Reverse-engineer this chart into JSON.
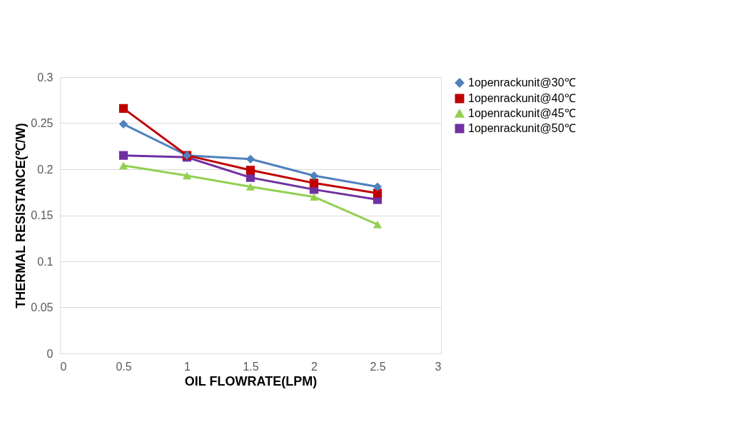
{
  "chart_data": {
    "type": "line",
    "xlabel": "OIL FLOWRATE(LPM)",
    "ylabel": "THERMAL RESISTANCE(℃/W)",
    "x": [
      0.5,
      1,
      1.5,
      2,
      2.5
    ],
    "series": [
      {
        "name": "1openrackunit@30℃",
        "color": "#4f81bd",
        "marker": "diamond",
        "values": [
          0.249,
          0.215,
          0.211,
          0.193,
          0.181
        ]
      },
      {
        "name": "1openrackunit@40℃",
        "color": "#c00000",
        "marker": "square",
        "values": [
          0.266,
          0.215,
          0.199,
          0.185,
          0.174
        ]
      },
      {
        "name": "1openrackunit@45℃",
        "color": "#92d050",
        "marker": "triangle",
        "values": [
          0.204,
          0.193,
          0.181,
          0.17,
          0.14
        ]
      },
      {
        "name": "1openrackunit@50℃",
        "color": "#7030a0",
        "marker": "square",
        "values": [
          0.215,
          0.213,
          0.191,
          0.178,
          0.167
        ]
      }
    ],
    "xlim": [
      0,
      3
    ],
    "xticks": [
      0,
      0.5,
      1,
      1.5,
      2,
      2.5,
      3
    ],
    "ylim": [
      0,
      0.3
    ],
    "yticks": [
      0,
      0.05,
      0.1,
      0.15,
      0.2,
      0.25,
      0.3
    ],
    "grid": "y",
    "legend": "right",
    "line_style": "solid"
  }
}
